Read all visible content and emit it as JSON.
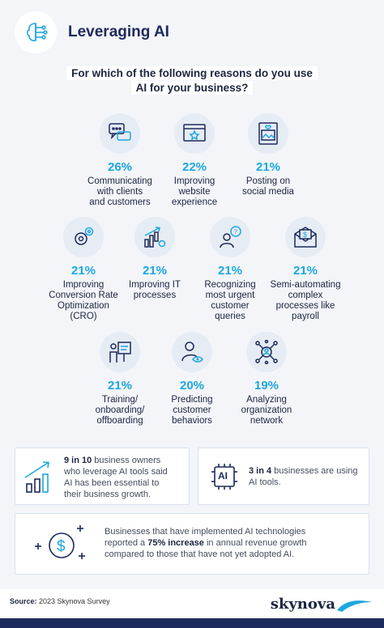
{
  "header": {
    "title": "Leveraging AI",
    "icon": "brain-circuit-icon"
  },
  "question": {
    "line1": "For which of the following reasons do you use",
    "line2": "AI for your business?"
  },
  "colors": {
    "accent": "#1da7e0",
    "navy": "#1d2a5c"
  },
  "stats": [
    {
      "percent": "26%",
      "label_lines": [
        "Communicating",
        "with clients",
        "and customers"
      ],
      "icon": "chat-bubbles-icon"
    },
    {
      "percent": "22%",
      "label_lines": [
        "Improving",
        "website",
        "experience"
      ],
      "icon": "browser-star-icon"
    },
    {
      "percent": "21%",
      "label_lines": [
        "Posting on",
        "social media"
      ],
      "icon": "social-post-icon"
    },
    {
      "percent": "21%",
      "label_lines": [
        "Improving",
        "Conversion Rate",
        "Optimization",
        "(CRO)"
      ],
      "icon": "gears-icon"
    },
    {
      "percent": "21%",
      "label_lines": [
        "Improving IT",
        "processes"
      ],
      "icon": "growth-chart-gear-icon"
    },
    {
      "percent": "21%",
      "label_lines": [
        "Recognizing",
        "most urgent",
        "customer",
        "queries"
      ],
      "icon": "person-question-icon"
    },
    {
      "percent": "21%",
      "label_lines": [
        "Semi-automating",
        "complex",
        "processes like",
        "payroll"
      ],
      "icon": "payroll-envelope-icon"
    },
    {
      "percent": "21%",
      "label_lines": [
        "Training/",
        "onboarding/",
        "offboarding"
      ],
      "icon": "presentation-icon"
    },
    {
      "percent": "20%",
      "label_lines": [
        "Predicting",
        "customer",
        "behaviors"
      ],
      "icon": "person-eye-icon"
    },
    {
      "percent": "19%",
      "label_lines": [
        "Analyzing",
        "organization",
        "network"
      ],
      "icon": "network-icon"
    }
  ],
  "facts": {
    "fact1": {
      "bold": "9 in 10",
      "rest1": " business owners",
      "line2": "who leverage AI tools said",
      "line3": "AI has been essential to",
      "line4": "their business growth.",
      "icon": "bar-chart-icon"
    },
    "fact2": {
      "bold": "3 in 4",
      "rest1": " businesses are using",
      "line2": "AI tools.",
      "icon": "ai-chip-icon",
      "chip_text": "AI"
    },
    "fact3": {
      "line1": "Businesses that have implemented AI technologies",
      "pre2": "reported a ",
      "bold2": "75% increase",
      "post2": " in annual revenue growth",
      "line3": "compared to those that have not yet adopted AI.",
      "icon": "dollar-coin-icon"
    }
  },
  "source": {
    "label": "Source:",
    "text": " 2023 Skynova Survey"
  },
  "logo": {
    "text": "skynova"
  }
}
